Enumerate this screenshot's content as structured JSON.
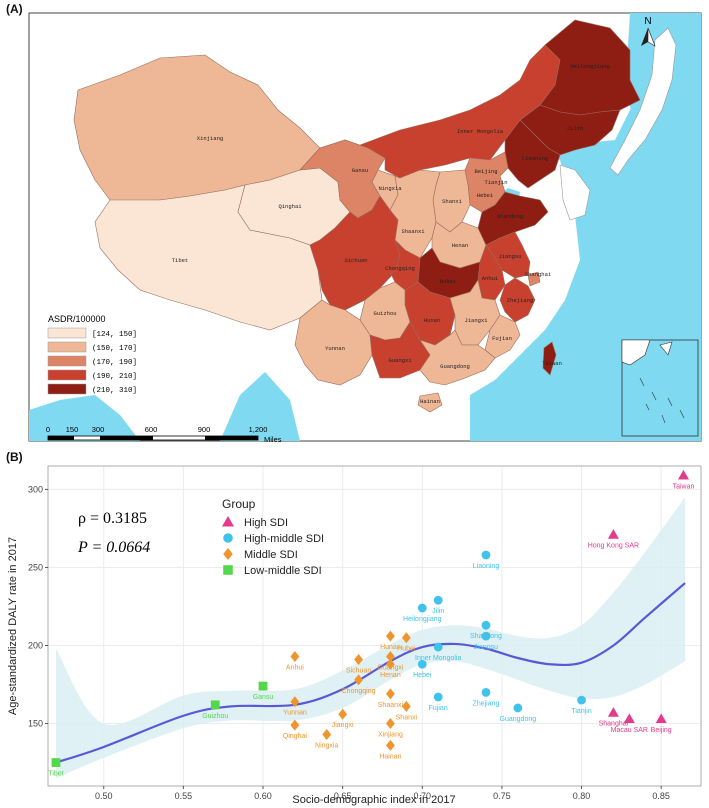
{
  "panel_a": {
    "label": "(A)",
    "north_label": "N",
    "legend_title": "ASDR/100000",
    "legend": [
      {
        "label": "[124, 150]",
        "color": "#fbe6d6"
      },
      {
        "label": "(150, 170]",
        "color": "#eeb796"
      },
      {
        "label": "(170, 190]",
        "color": "#dc8465"
      },
      {
        "label": "(190, 210]",
        "color": "#c8412e"
      },
      {
        "label": "(210, 310]",
        "color": "#8e1d14"
      }
    ],
    "scale_labels": [
      "0",
      "150",
      "300",
      "600",
      "900",
      "1,200"
    ],
    "scale_unit": "Miles",
    "provinces": [
      "Heilongjiang",
      "Jilin",
      "Liaoning",
      "Inner Mongolia",
      "Xinjiang",
      "Tibet",
      "Qinghai",
      "Gansu",
      "Ningxia",
      "Beijing",
      "Tianjin",
      "Hebei",
      "Shanxi",
      "Shaanxi",
      "Henan",
      "Shandong",
      "Jiangsu",
      "Anhui",
      "Shanghai",
      "Hubei",
      "Sichuan",
      "Chongqing",
      "Zhejiang",
      "Hunan",
      "Jiangxi",
      "Guizhou",
      "Yunnan",
      "Fujian",
      "Guangxi",
      "Guangdong",
      "Taiwan",
      "Hainan"
    ],
    "province_label_text": [
      "Heilongjiang",
      "Jilin",
      "Liaoning",
      "Inner Mongolia",
      "Xinjiang",
      "Tibet",
      "Qinghai",
      "Gansu",
      "Ningxia",
      "Beijing",
      "Tianjin",
      "Hebei",
      "Shanxi",
      "Shaanxi",
      "Henan",
      "Shandong",
      "Jiangsu",
      "Anhui",
      "Shanghai",
      "Hubei",
      "Sichuan",
      "Chongqing",
      "Zhejiang",
      "Hunan",
      "Jiangxi",
      "Guizhou",
      "Yunnan",
      "Fujian",
      "Guangxi",
      "Guangdong",
      "Taiwan",
      "Hainan"
    ]
  },
  "panel_b": {
    "label": "(B)",
    "legend_title": "Group",
    "rho_text": "ρ = 0.3185",
    "p_text": "P = 0.0664"
  },
  "colors": {
    "sea": "#7fd9f1",
    "land": "#ffffff",
    "high": "#e43a8c",
    "high_middle": "#40c3ea",
    "middle": "#f0952e",
    "low_middle": "#53d84b",
    "fit": "#5b58d6",
    "band": "#d9eff3"
  },
  "chart_data": {
    "type": "scatter",
    "xlabel": "Socio-demographic index in 2017",
    "ylabel": "Age-standardized DALY rate in 2017",
    "xlim": [
      0.465,
      0.875
    ],
    "ylim": [
      110,
      315
    ],
    "xticks": [
      0.5,
      0.55,
      0.6,
      0.65,
      0.7,
      0.75,
      0.8,
      0.85
    ],
    "yticks": [
      150,
      200,
      250,
      300
    ],
    "grid": true,
    "legend_position": "top-left",
    "series": [
      {
        "name": "High SDI",
        "marker": "triangle",
        "color_key": "high",
        "points": [
          {
            "label": "Taiwan",
            "x": 0.864,
            "y": 309
          },
          {
            "label": "Hong Kong SAR",
            "x": 0.82,
            "y": 271
          },
          {
            "label": "Shanghai",
            "x": 0.82,
            "y": 157
          },
          {
            "label": "Macau SAR",
            "x": 0.83,
            "y": 153
          },
          {
            "label": "Beijing",
            "x": 0.85,
            "y": 153
          }
        ]
      },
      {
        "name": "High-middle SDI",
        "marker": "circle",
        "color_key": "high_middle",
        "points": [
          {
            "label": "Liaoning",
            "x": 0.74,
            "y": 258
          },
          {
            "label": "Jilin",
            "x": 0.71,
            "y": 229
          },
          {
            "label": "Heilongjiang",
            "x": 0.7,
            "y": 224
          },
          {
            "label": "Shandong",
            "x": 0.74,
            "y": 213
          },
          {
            "label": "Jiangsu",
            "x": 0.74,
            "y": 206
          },
          {
            "label": "Inner Mongolia",
            "x": 0.71,
            "y": 199
          },
          {
            "label": "Hebei",
            "x": 0.7,
            "y": 188
          },
          {
            "label": "Fujian",
            "x": 0.71,
            "y": 167
          },
          {
            "label": "Zhejiang",
            "x": 0.74,
            "y": 170
          },
          {
            "label": "Guangdong",
            "x": 0.76,
            "y": 160
          },
          {
            "label": "Tianjin",
            "x": 0.8,
            "y": 165
          }
        ]
      },
      {
        "name": "Middle SDI",
        "marker": "diamond",
        "color_key": "middle",
        "points": [
          {
            "label": "Anhui",
            "x": 0.62,
            "y": 193
          },
          {
            "label": "Hubei",
            "x": 0.69,
            "y": 205
          },
          {
            "label": "Hunan",
            "x": 0.68,
            "y": 206
          },
          {
            "label": "Guangxi",
            "x": 0.68,
            "y": 193
          },
          {
            "label": "Sichuan",
            "x": 0.66,
            "y": 191
          },
          {
            "label": "Henan",
            "x": 0.68,
            "y": 188
          },
          {
            "label": "Chongqing",
            "x": 0.66,
            "y": 178
          },
          {
            "label": "Shaanxi",
            "x": 0.68,
            "y": 169
          },
          {
            "label": "Yunnan",
            "x": 0.62,
            "y": 164
          },
          {
            "label": "Shanxi",
            "x": 0.69,
            "y": 161
          },
          {
            "label": "Jiangxi",
            "x": 0.65,
            "y": 156
          },
          {
            "label": "Qinghai",
            "x": 0.62,
            "y": 149
          },
          {
            "label": "Xinjiang",
            "x": 0.68,
            "y": 150
          },
          {
            "label": "Ningxia",
            "x": 0.64,
            "y": 143
          },
          {
            "label": "Hainan",
            "x": 0.68,
            "y": 136
          }
        ]
      },
      {
        "name": "Low-middle SDI",
        "marker": "square",
        "color_key": "low_middle",
        "points": [
          {
            "label": "Gansu",
            "x": 0.6,
            "y": 174
          },
          {
            "label": "Guizhou",
            "x": 0.57,
            "y": 162
          },
          {
            "label": "Tibet",
            "x": 0.47,
            "y": 125
          }
        ]
      }
    ],
    "fit": {
      "x": [
        0.47,
        0.5,
        0.55,
        0.58,
        0.62,
        0.65,
        0.68,
        0.7,
        0.72,
        0.74,
        0.76,
        0.78,
        0.8,
        0.82,
        0.84,
        0.865
      ],
      "y": [
        125,
        135,
        155,
        161,
        162,
        172,
        190,
        199,
        201,
        198,
        192,
        188,
        189,
        200,
        218,
        240
      ],
      "lower": [
        115,
        128,
        147,
        152,
        152,
        160,
        178,
        188,
        190,
        185,
        178,
        171,
        166,
        167,
        175,
        190
      ],
      "upper": [
        198,
        150,
        168,
        171,
        172,
        184,
        201,
        210,
        213,
        211,
        206,
        205,
        213,
        234,
        260,
        295
      ]
    }
  }
}
